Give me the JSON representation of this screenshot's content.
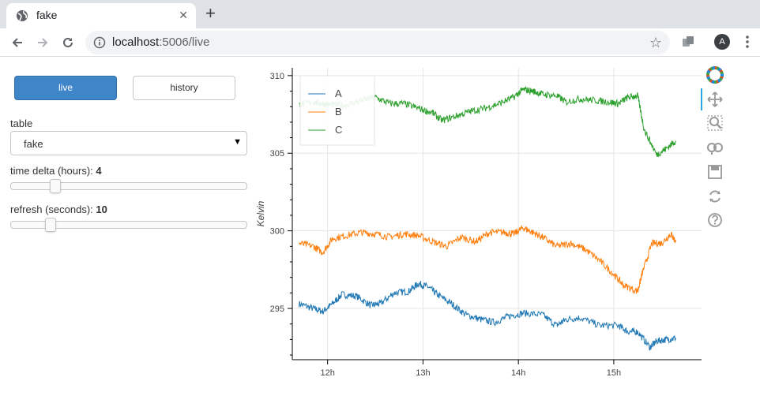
{
  "browser": {
    "tab_title": "fake",
    "tab_close": "✕",
    "new_tab": "+",
    "url_host": "localhost",
    "url_rest": ":5006/live",
    "avatar_letter": "A"
  },
  "controls": {
    "live_label": "live",
    "history_label": "history",
    "table_label": "table",
    "table_value": "fake",
    "time_delta_label": "time delta (hours): ",
    "time_delta_value": "4",
    "refresh_label": "refresh (seconds): ",
    "refresh_value": "10"
  },
  "slider_levels": {
    "time_delta_fraction": 0.17,
    "refresh_fraction": 0.15
  },
  "colors": {
    "A": "#1f77b4",
    "B": "#ff7f0e",
    "C": "#2ca02c",
    "accent": "#3f86c9"
  },
  "chart_data": {
    "type": "line",
    "ylabel": "Kelvin",
    "xlabel": "",
    "xticks": [
      "12h",
      "13h",
      "14h",
      "15h"
    ],
    "xtick_hours": [
      12,
      13,
      14,
      15
    ],
    "xlim": [
      11.63,
      15.92
    ],
    "ylim": [
      291.7,
      310.5
    ],
    "yticks": [
      295,
      300,
      305,
      310
    ],
    "grid": true,
    "legend_position": "top-left",
    "series": [
      {
        "name": "A",
        "color": "#1f77b4",
        "x": [
          11.7,
          11.85,
          11.95,
          12.05,
          12.15,
          12.3,
          12.45,
          12.55,
          12.7,
          12.85,
          12.95,
          13.05,
          13.15,
          13.3,
          13.45,
          13.6,
          13.75,
          13.9,
          14.05,
          14.25,
          14.4,
          14.5,
          14.65,
          14.85,
          15.05,
          15.15,
          15.25,
          15.38,
          15.45,
          15.55,
          15.65
        ],
        "y": [
          295.3,
          295.0,
          294.8,
          295.3,
          295.9,
          295.8,
          295.2,
          295.3,
          296.0,
          296.1,
          296.6,
          296.4,
          295.9,
          295.3,
          294.6,
          294.3,
          294.1,
          294.5,
          294.7,
          294.6,
          293.9,
          294.3,
          294.4,
          293.9,
          293.9,
          293.5,
          293.5,
          292.5,
          292.9,
          293.0,
          293.1
        ]
      },
      {
        "name": "B",
        "color": "#ff7f0e",
        "x": [
          11.7,
          11.85,
          11.95,
          12.05,
          12.2,
          12.35,
          12.5,
          12.65,
          12.8,
          12.95,
          13.1,
          13.25,
          13.4,
          13.55,
          13.7,
          13.85,
          13.95,
          14.05,
          14.15,
          14.25,
          14.4,
          14.55,
          14.7,
          14.85,
          15.0,
          15.1,
          15.25,
          15.3,
          15.4,
          15.5,
          15.6,
          15.65
        ],
        "y": [
          299.2,
          299.0,
          298.6,
          299.5,
          299.7,
          299.9,
          299.8,
          299.6,
          299.8,
          299.7,
          299.3,
          299.0,
          299.6,
          299.3,
          299.9,
          299.9,
          299.8,
          300.2,
          299.9,
          299.6,
          299.0,
          299.2,
          298.8,
          298.1,
          297.2,
          296.5,
          296.1,
          297.3,
          299.2,
          299.2,
          299.8,
          299.3
        ]
      },
      {
        "name": "C",
        "color": "#2ca02c",
        "x": [
          11.7,
          11.85,
          11.95,
          12.05,
          12.2,
          12.35,
          12.5,
          12.65,
          12.8,
          12.95,
          13.1,
          13.2,
          13.35,
          13.5,
          13.65,
          13.8,
          13.95,
          14.05,
          14.15,
          14.25,
          14.4,
          14.5,
          14.65,
          14.8,
          14.95,
          15.05,
          15.15,
          15.25,
          15.32,
          15.45,
          15.55,
          15.65
        ],
        "y": [
          308.1,
          308.3,
          308.2,
          308.1,
          308.1,
          308.4,
          308.6,
          308.2,
          308.2,
          307.9,
          307.6,
          307.1,
          307.4,
          307.7,
          307.9,
          308.2,
          308.6,
          309.1,
          309.0,
          308.8,
          308.7,
          308.3,
          308.5,
          308.4,
          308.3,
          308.2,
          308.6,
          308.7,
          306.5,
          304.9,
          305.3,
          305.8
        ]
      }
    ]
  }
}
